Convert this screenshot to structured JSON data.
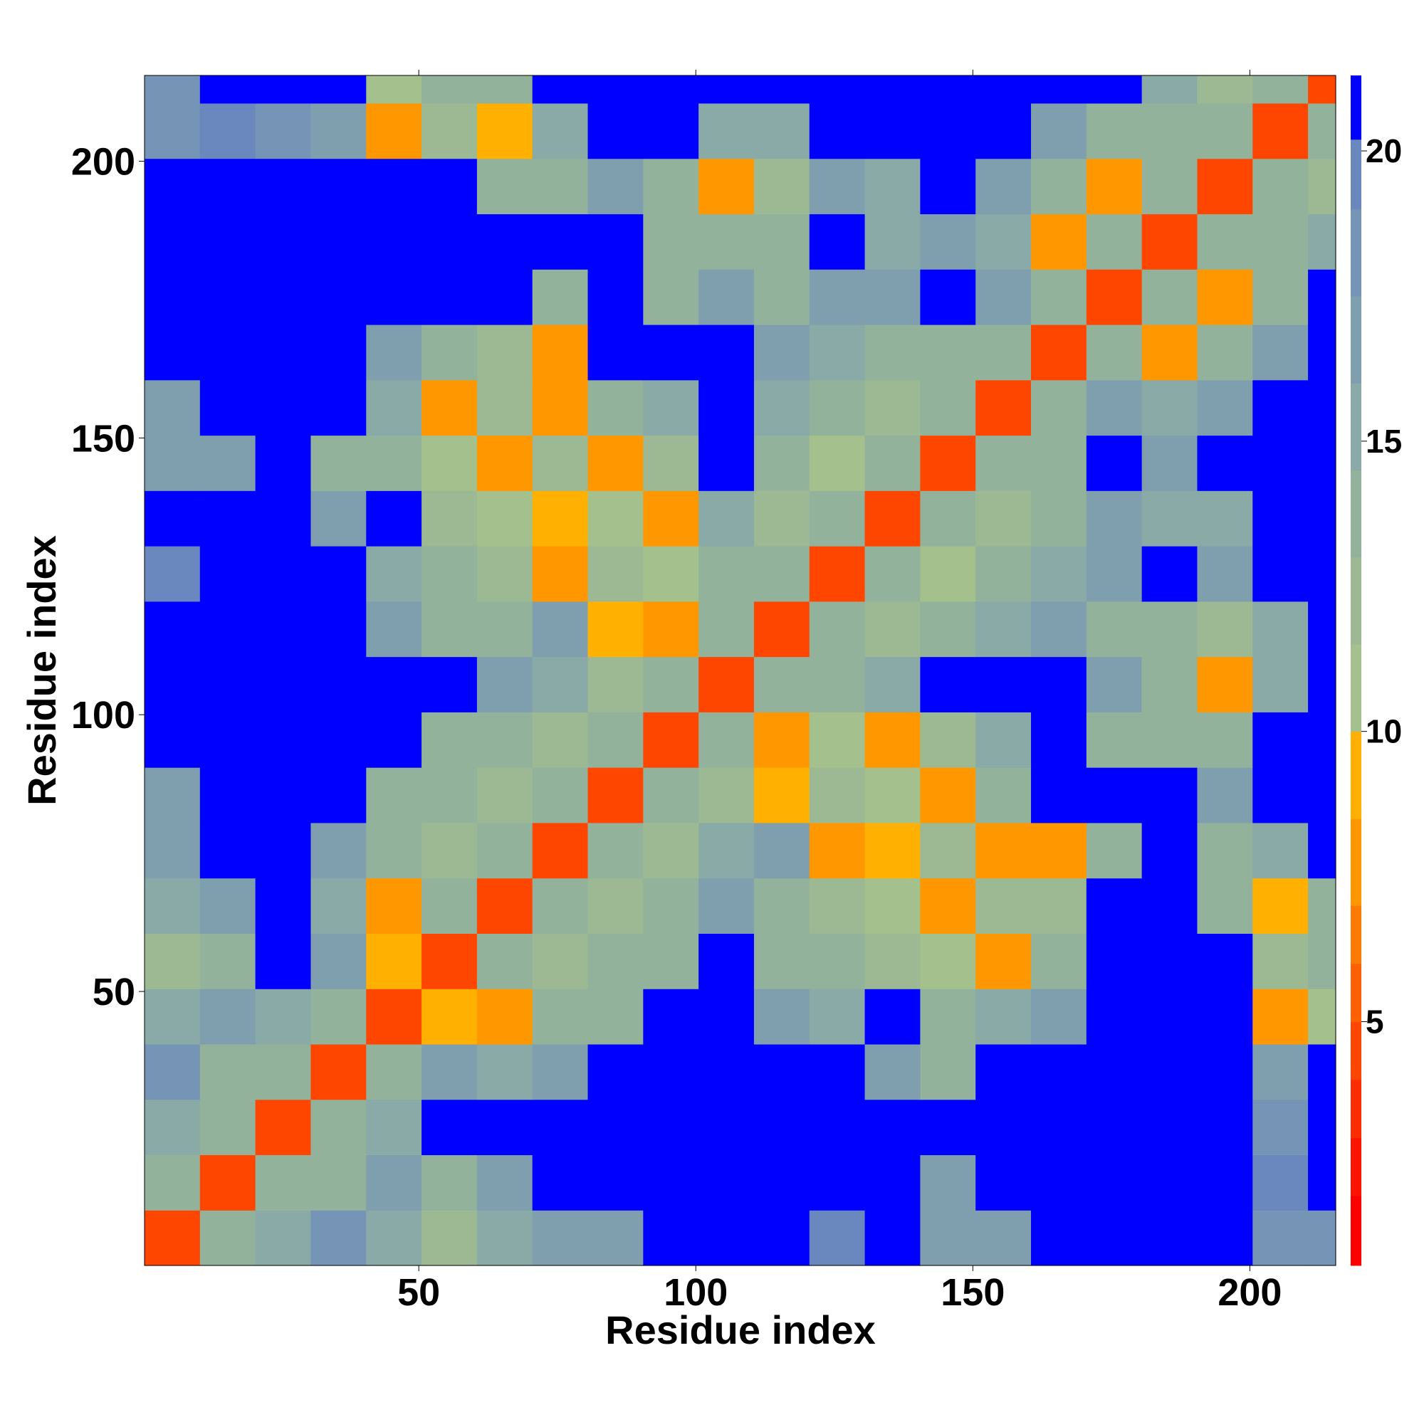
{
  "chart_data": {
    "type": "heatmap",
    "xlabel": "Residue index",
    "ylabel": "Residue index",
    "x_bins": [
      0.5,
      10.5,
      20.5,
      30.5,
      40.5,
      50.5,
      60.5,
      70.5,
      80.5,
      90.5,
      100.5,
      110.5,
      120.5,
      130.5,
      140.5,
      150.5,
      160.5,
      170.5,
      180.5,
      190.5,
      200.5,
      210.5,
      215.5
    ],
    "y_bins": [
      0.5,
      10.5,
      20.5,
      30.5,
      40.5,
      50.5,
      60.5,
      70.5,
      80.5,
      90.5,
      100.5,
      110.5,
      120.5,
      130.5,
      140.5,
      150.5,
      160.5,
      170.5,
      180.5,
      190.5,
      200.5,
      210.5,
      215.5
    ],
    "xlim": [
      0.5,
      215.5
    ],
    "ylim": [
      0.5,
      215.5
    ],
    "xticks": [
      50,
      100,
      150,
      200
    ],
    "yticks": [
      50,
      100,
      150,
      200
    ],
    "z": [
      [
        4,
        13,
        15,
        18,
        15,
        12,
        15,
        17,
        16,
        22,
        22,
        22,
        19,
        22,
        16,
        17,
        22,
        22,
        22,
        22,
        18,
        18
      ],
      [
        13,
        4,
        13,
        14,
        16,
        14,
        17,
        22,
        22,
        22,
        22,
        22,
        22,
        22,
        17,
        22,
        22,
        22,
        22,
        22,
        19,
        22
      ],
      [
        15,
        13,
        4,
        13,
        15,
        22,
        22,
        22,
        22,
        22,
        22,
        22,
        22,
        22,
        22,
        22,
        22,
        22,
        22,
        22,
        18,
        22
      ],
      [
        18,
        14,
        13,
        4,
        13,
        17,
        15,
        16,
        22,
        22,
        22,
        22,
        22,
        17,
        14,
        22,
        22,
        22,
        22,
        22,
        16,
        22
      ],
      [
        15,
        16,
        15,
        13,
        4,
        9,
        8,
        13,
        14,
        22,
        22,
        16,
        15,
        22,
        13,
        15,
        16,
        22,
        22,
        22,
        8,
        10
      ],
      [
        12,
        14,
        22,
        17,
        9,
        4,
        13,
        12,
        13,
        14,
        22,
        13,
        13,
        12,
        11,
        8,
        14,
        22,
        22,
        22,
        12,
        14
      ],
      [
        15,
        17,
        22,
        15,
        8,
        13,
        4,
        13,
        12,
        13,
        16,
        13,
        12,
        11,
        8,
        12,
        12,
        22,
        22,
        14,
        9,
        14
      ],
      [
        17,
        22,
        22,
        16,
        13,
        12,
        13,
        4,
        13,
        12,
        15,
        17,
        8,
        9,
        12,
        8,
        8,
        14,
        22,
        14,
        15,
        22
      ],
      [
        16,
        22,
        22,
        22,
        14,
        13,
        12,
        13,
        4,
        13,
        12,
        9,
        12,
        11,
        8,
        13,
        22,
        22,
        22,
        16,
        22,
        22
      ],
      [
        22,
        22,
        22,
        22,
        22,
        14,
        13,
        12,
        13,
        4,
        13,
        8,
        11,
        8,
        12,
        15,
        22,
        14,
        14,
        13,
        22,
        22
      ],
      [
        22,
        22,
        22,
        22,
        22,
        22,
        16,
        15,
        12,
        13,
        4,
        13,
        14,
        15,
        22,
        22,
        22,
        16,
        14,
        8,
        15,
        22
      ],
      [
        22,
        22,
        22,
        22,
        16,
        13,
        13,
        17,
        9,
        8,
        13,
        4,
        13,
        12,
        13,
        15,
        17,
        14,
        13,
        12,
        15,
        22
      ],
      [
        19,
        22,
        22,
        22,
        15,
        13,
        12,
        8,
        12,
        11,
        14,
        13,
        4,
        13,
        11,
        14,
        15,
        17,
        22,
        16,
        22,
        22
      ],
      [
        22,
        22,
        22,
        17,
        22,
        12,
        11,
        9,
        11,
        8,
        15,
        12,
        13,
        4,
        13,
        12,
        14,
        16,
        15,
        15,
        22,
        22
      ],
      [
        16,
        17,
        22,
        14,
        13,
        11,
        8,
        12,
        8,
        12,
        22,
        13,
        11,
        13,
        4,
        13,
        13,
        22,
        17,
        22,
        22,
        22
      ],
      [
        17,
        22,
        22,
        22,
        15,
        8,
        12,
        8,
        13,
        15,
        22,
        15,
        14,
        12,
        13,
        4,
        13,
        16,
        15,
        17,
        22,
        22
      ],
      [
        22,
        22,
        22,
        22,
        16,
        14,
        12,
        8,
        22,
        22,
        22,
        17,
        15,
        14,
        13,
        13,
        4,
        13,
        8,
        13,
        16,
        22
      ],
      [
        22,
        22,
        22,
        22,
        22,
        22,
        22,
        14,
        22,
        14,
        16,
        14,
        17,
        16,
        22,
        16,
        13,
        4,
        13,
        8,
        14,
        22
      ],
      [
        22,
        22,
        22,
        22,
        22,
        22,
        22,
        22,
        22,
        14,
        14,
        13,
        22,
        15,
        17,
        15,
        8,
        13,
        4,
        13,
        13,
        15
      ],
      [
        22,
        22,
        22,
        22,
        22,
        22,
        14,
        14,
        16,
        13,
        8,
        12,
        16,
        15,
        22,
        17,
        13,
        8,
        13,
        4,
        13,
        12
      ],
      [
        18,
        19,
        18,
        16,
        8,
        12,
        9,
        15,
        22,
        22,
        15,
        15,
        22,
        22,
        22,
        22,
        16,
        14,
        13,
        13,
        4,
        13
      ],
      [
        18,
        22,
        22,
        22,
        10,
        14,
        14,
        22,
        22,
        22,
        22,
        22,
        22,
        22,
        22,
        22,
        22,
        22,
        15,
        12,
        13,
        4
      ]
    ],
    "colorbar": {
      "levels": [
        0.8,
        2,
        3,
        4,
        5,
        6,
        7,
        8.5,
        10,
        11.5,
        13,
        14.5,
        16,
        17.5,
        19,
        20.2,
        21.3
      ],
      "colors": [
        "#ff0000",
        "#ff1400",
        "#ff2d00",
        "#ff4600",
        "#ff6000",
        "#ff7a00",
        "#ff9800",
        "#ffb000",
        "#a4c08c",
        "#9cb994",
        "#93b29c",
        "#89aaa6",
        "#7f9fae",
        "#7594b6",
        "#6a88bd",
        "#0000ff"
      ],
      "ticks": [
        5,
        10,
        15,
        20
      ]
    }
  }
}
